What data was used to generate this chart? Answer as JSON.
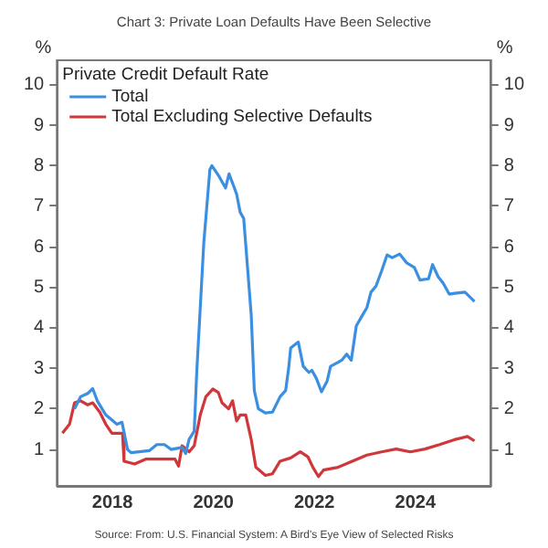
{
  "chart_data": {
    "type": "line",
    "title": "Chart 3: Private Loan Defaults Have Been Selective",
    "ylabel": "%",
    "y2label": "%",
    "legend_title": "Private Credit Default Rate",
    "legend": "top left",
    "grid": false,
    "marker": "none",
    "line_style": "solid",
    "xlim": [
      2016.9,
      2025.5
    ],
    "xticks": [
      2018,
      2020,
      2022,
      2024
    ],
    "ylim": [
      0.1,
      10.6
    ],
    "yticks": [
      1,
      2,
      3,
      4,
      5,
      6,
      7,
      8,
      9,
      10
    ],
    "y2lim": [
      0.1,
      10.6
    ],
    "y2ticks": [
      1,
      2,
      3,
      4,
      5,
      6,
      7,
      8,
      9,
      10
    ],
    "annotations": [
      "Source: From: U.S. Financial System: A Bird's Eye View of Selected Risks"
    ],
    "series": [
      {
        "name": "Total",
        "color": "#3b8fe0",
        "x": [
          2017.25,
          2017.37,
          2017.51,
          2017.61,
          2017.7,
          2017.87,
          2018.09,
          2018.19,
          2018.3,
          2018.37,
          2018.73,
          2018.88,
          2019.03,
          2019.16,
          2019.38,
          2019.45,
          2019.52,
          2019.62,
          2019.67,
          2019.81,
          2019.93,
          2019.97,
          2020.1,
          2020.24,
          2020.31,
          2020.46,
          2020.53,
          2020.6,
          2020.75,
          2020.81,
          2020.89,
          2021.03,
          2021.17,
          2021.32,
          2021.43,
          2021.49,
          2021.53,
          2021.68,
          2021.78,
          2021.89,
          2021.95,
          2022.04,
          2022.14,
          2022.25,
          2022.32,
          2022.47,
          2022.54,
          2022.64,
          2022.73,
          2022.83,
          2022.97,
          2023.04,
          2023.12,
          2023.22,
          2023.33,
          2023.44,
          2023.54,
          2023.69,
          2023.83,
          2023.98,
          2024.09,
          2024.26,
          2024.34,
          2024.45,
          2024.55,
          2024.67,
          2024.78,
          2024.98,
          2025.17
        ],
        "values": [
          2.0,
          2.3,
          2.38,
          2.5,
          2.2,
          1.85,
          1.62,
          1.67,
          1.0,
          0.92,
          0.97,
          1.12,
          1.12,
          1.0,
          1.05,
          0.9,
          1.25,
          1.45,
          2.9,
          6.1,
          7.9,
          8.0,
          7.76,
          7.45,
          7.8,
          7.3,
          6.85,
          6.7,
          4.3,
          2.45,
          2.0,
          1.9,
          1.92,
          2.3,
          2.45,
          3.0,
          3.5,
          3.65,
          3.05,
          2.9,
          2.95,
          2.75,
          2.42,
          2.68,
          3.05,
          3.15,
          3.2,
          3.35,
          3.2,
          4.05,
          4.35,
          4.5,
          4.88,
          5.03,
          5.4,
          5.8,
          5.73,
          5.82,
          5.6,
          5.49,
          5.18,
          5.21,
          5.56,
          5.26,
          5.1,
          4.83,
          4.85,
          4.88,
          4.65
        ]
      },
      {
        "name": "Total Excluding Selective Defaults",
        "color": "#d0373a",
        "x": [
          2017.01,
          2017.15,
          2017.25,
          2017.37,
          2017.51,
          2017.61,
          2017.75,
          2017.87,
          2017.99,
          2018.2,
          2018.23,
          2018.44,
          2018.66,
          2018.88,
          2019.24,
          2019.31,
          2019.38,
          2019.52,
          2019.62,
          2019.74,
          2019.85,
          2019.99,
          2020.1,
          2020.17,
          2020.3,
          2020.38,
          2020.46,
          2020.53,
          2020.64,
          2020.75,
          2020.84,
          2021.03,
          2021.17,
          2021.32,
          2021.53,
          2021.72,
          2021.87,
          2021.97,
          2022.08,
          2022.18,
          2022.47,
          2022.75,
          2023.04,
          2023.33,
          2023.62,
          2023.9,
          2024.19,
          2024.48,
          2024.77,
          2025.03,
          2025.17
        ],
        "values": [
          1.4,
          1.62,
          2.15,
          2.2,
          2.1,
          2.15,
          1.92,
          1.62,
          1.4,
          1.4,
          0.71,
          0.64,
          0.76,
          0.76,
          0.76,
          0.59,
          1.09,
          0.94,
          1.09,
          1.85,
          2.3,
          2.49,
          2.4,
          2.15,
          2.0,
          2.2,
          1.7,
          1.85,
          1.85,
          1.24,
          0.56,
          0.36,
          0.4,
          0.71,
          0.79,
          0.94,
          0.82,
          0.56,
          0.33,
          0.49,
          0.56,
          0.71,
          0.86,
          0.94,
          1.01,
          0.94,
          1.01,
          1.12,
          1.24,
          1.32,
          1.21
        ]
      }
    ]
  }
}
